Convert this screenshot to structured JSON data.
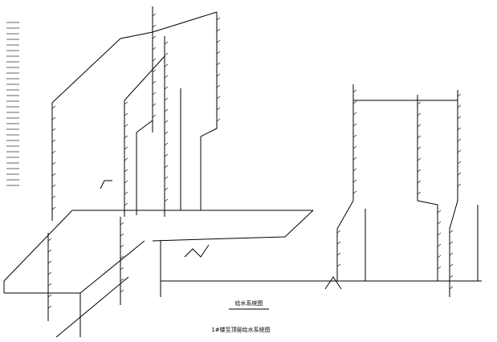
{
  "title": "给水系统图",
  "subtitle": "1#楼至顶层给水系统图"
}
